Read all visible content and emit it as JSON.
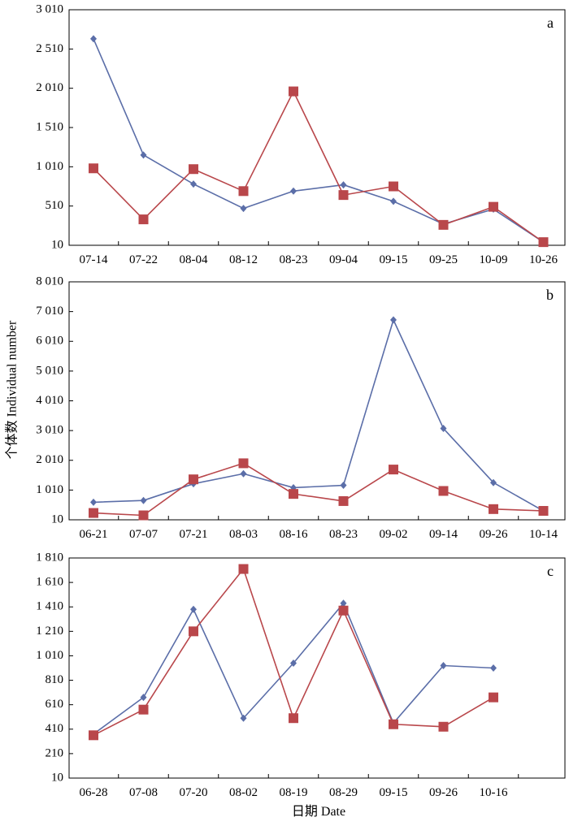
{
  "figure": {
    "ylabel": "个体数 Individual number",
    "xlabel": "日期 Date",
    "colors": {
      "series_blue": "#5B6EA8",
      "series_red": "#B9474B",
      "axis": "#000000"
    }
  },
  "chart_data": [
    {
      "type": "line",
      "panel_label": "a",
      "categories": [
        "07-14",
        "07-22",
        "08-04",
        "08-12",
        "08-23",
        "09-04",
        "09-15",
        "09-25",
        "10-09",
        "10-26"
      ],
      "yticks": [
        "3 010",
        "2 510",
        "2 010",
        "1 510",
        "1 010",
        "510",
        "10"
      ],
      "ylim": [
        10,
        3010
      ],
      "series": [
        {
          "name": "blue-diamond",
          "marker": "diamond",
          "color": "#5B6EA8",
          "values": [
            2640,
            1160,
            790,
            480,
            700,
            780,
            570,
            280,
            470,
            50
          ]
        },
        {
          "name": "red-square",
          "marker": "square",
          "color": "#B9474B",
          "values": [
            990,
            340,
            980,
            700,
            1970,
            650,
            760,
            270,
            500,
            50
          ]
        }
      ]
    },
    {
      "type": "line",
      "panel_label": "b",
      "categories": [
        "06-21",
        "07-07",
        "07-21",
        "08-03",
        "08-16",
        "08-23",
        "09-02",
        "09-14",
        "09-26",
        "10-14"
      ],
      "yticks": [
        "8 010",
        "7 010",
        "6 010",
        "5 010",
        "4 010",
        "3 010",
        "2 010",
        "1 010",
        "10"
      ],
      "ylim": [
        10,
        8010
      ],
      "series": [
        {
          "name": "blue-diamond",
          "marker": "diamond",
          "color": "#5B6EA8",
          "values": [
            600,
            660,
            1220,
            1560,
            1090,
            1170,
            6730,
            3080,
            1260,
            310
          ]
        },
        {
          "name": "red-square",
          "marker": "square",
          "color": "#B9474B",
          "values": [
            240,
            160,
            1370,
            1910,
            880,
            640,
            1700,
            980,
            370,
            310
          ]
        }
      ]
    },
    {
      "type": "line",
      "panel_label": "c",
      "categories": [
        "06-28",
        "07-08",
        "07-20",
        "08-02",
        "08-19",
        "08-29",
        "09-15",
        "09-26",
        "10-16"
      ],
      "yticks": [
        "1 810",
        "1 610",
        "1 410",
        "1 210",
        "1 010",
        "810",
        "610",
        "410",
        "210",
        "10"
      ],
      "ylim": [
        10,
        1810
      ],
      "series": [
        {
          "name": "blue-diamond",
          "marker": "diamond",
          "color": "#5B6EA8",
          "values": [
            370,
            670,
            1390,
            500,
            950,
            1440,
            460,
            930,
            910
          ]
        },
        {
          "name": "red-square",
          "marker": "square",
          "color": "#B9474B",
          "values": [
            360,
            570,
            1210,
            1720,
            500,
            1380,
            450,
            430,
            670
          ]
        }
      ]
    }
  ]
}
